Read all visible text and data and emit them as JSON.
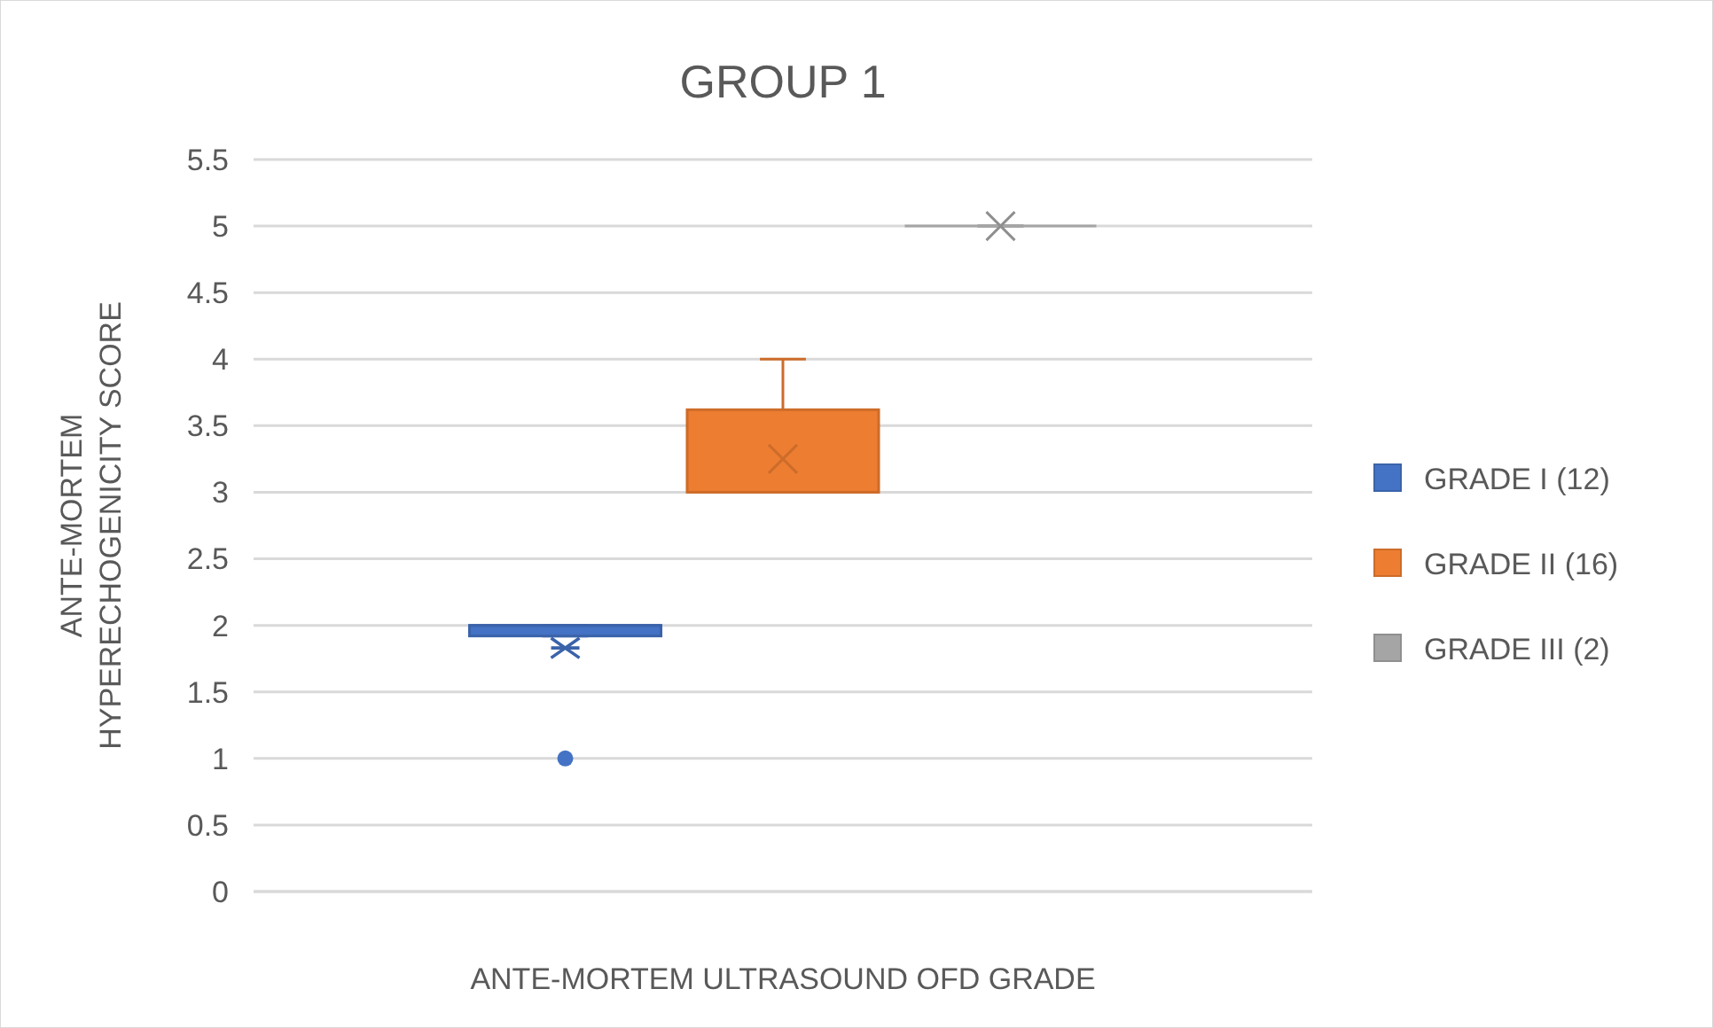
{
  "chart_data": {
    "type": "box",
    "title": "GROUP 1",
    "xlabel": "ANTE-MORTEM ULTRASOUND OFD GRADE",
    "ylabel": "ANTE-MORTEM HYPERECHOGENICITY SCORE",
    "categories": [
      null
    ],
    "series": [
      {
        "name": "GRADE I (12)",
        "color": "#4472c4",
        "marker": "star",
        "boxes": [
          {
            "low": 1.92,
            "q1": 1.92,
            "median": 2,
            "q3": 2,
            "high": 2,
            "mean": 1.83,
            "outliers": [
              1
            ]
          }
        ]
      },
      {
        "name": "GRADE II (16)",
        "color": "#ed7d31",
        "marker": "cross",
        "boxes": [
          {
            "low": 3,
            "q1": 3,
            "median": 3,
            "q3": 3.62,
            "high": 4,
            "mean": 3.25
          }
        ]
      },
      {
        "name": "GRADE III (2)",
        "color": "#a5a5a5",
        "marker": "cross",
        "boxes": [
          {
            "low": 5,
            "q1": 5,
            "median": 5,
            "q3": 5,
            "high": 5,
            "mean": 5
          }
        ]
      }
    ],
    "ylim": [
      0,
      5.5
    ],
    "yticks": [
      0,
      0.5,
      1,
      1.5,
      2,
      2.5,
      3,
      3.5,
      4,
      4.5,
      5,
      5.5
    ],
    "grid": "y",
    "legend": "right"
  }
}
